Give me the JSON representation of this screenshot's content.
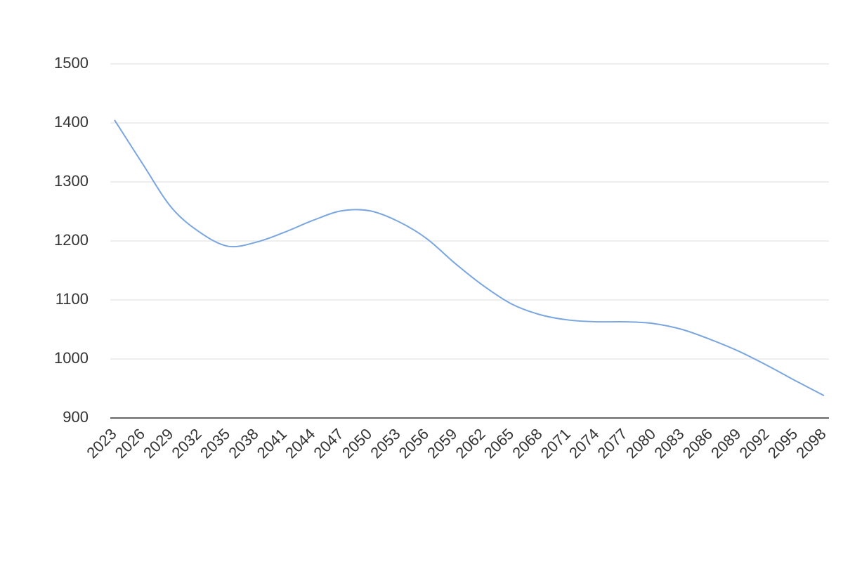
{
  "chart_data": {
    "type": "line",
    "x": [
      2023,
      2026,
      2029,
      2032,
      2035,
      2038,
      2041,
      2044,
      2047,
      2050,
      2053,
      2056,
      2059,
      2062,
      2065,
      2068,
      2071,
      2074,
      2077,
      2080,
      2083,
      2086,
      2089,
      2092,
      2095,
      2098
    ],
    "series": [
      {
        "color": "#7aa6e0",
        "values": [
          1405,
          1330,
          1257,
          1215,
          1191,
          1198,
          1215,
          1235,
          1251,
          1251,
          1233,
          1204,
          1162,
          1124,
          1093,
          1075,
          1066,
          1063,
          1063,
          1060,
          1050,
          1033,
          1013,
          989,
          963,
          938
        ]
      }
    ],
    "xlim": [
      2023,
      2098
    ],
    "xticks": [
      2023,
      2026,
      2029,
      2032,
      2035,
      2038,
      2041,
      2044,
      2047,
      2050,
      2053,
      2056,
      2059,
      2062,
      2065,
      2068,
      2071,
      2074,
      2077,
      2080,
      2083,
      2086,
      2089,
      2092,
      2095,
      2098
    ],
    "ylim": [
      900,
      1500
    ],
    "yticks": [
      900,
      1000,
      1100,
      1200,
      1300,
      1400,
      1500
    ],
    "grid": true
  }
}
